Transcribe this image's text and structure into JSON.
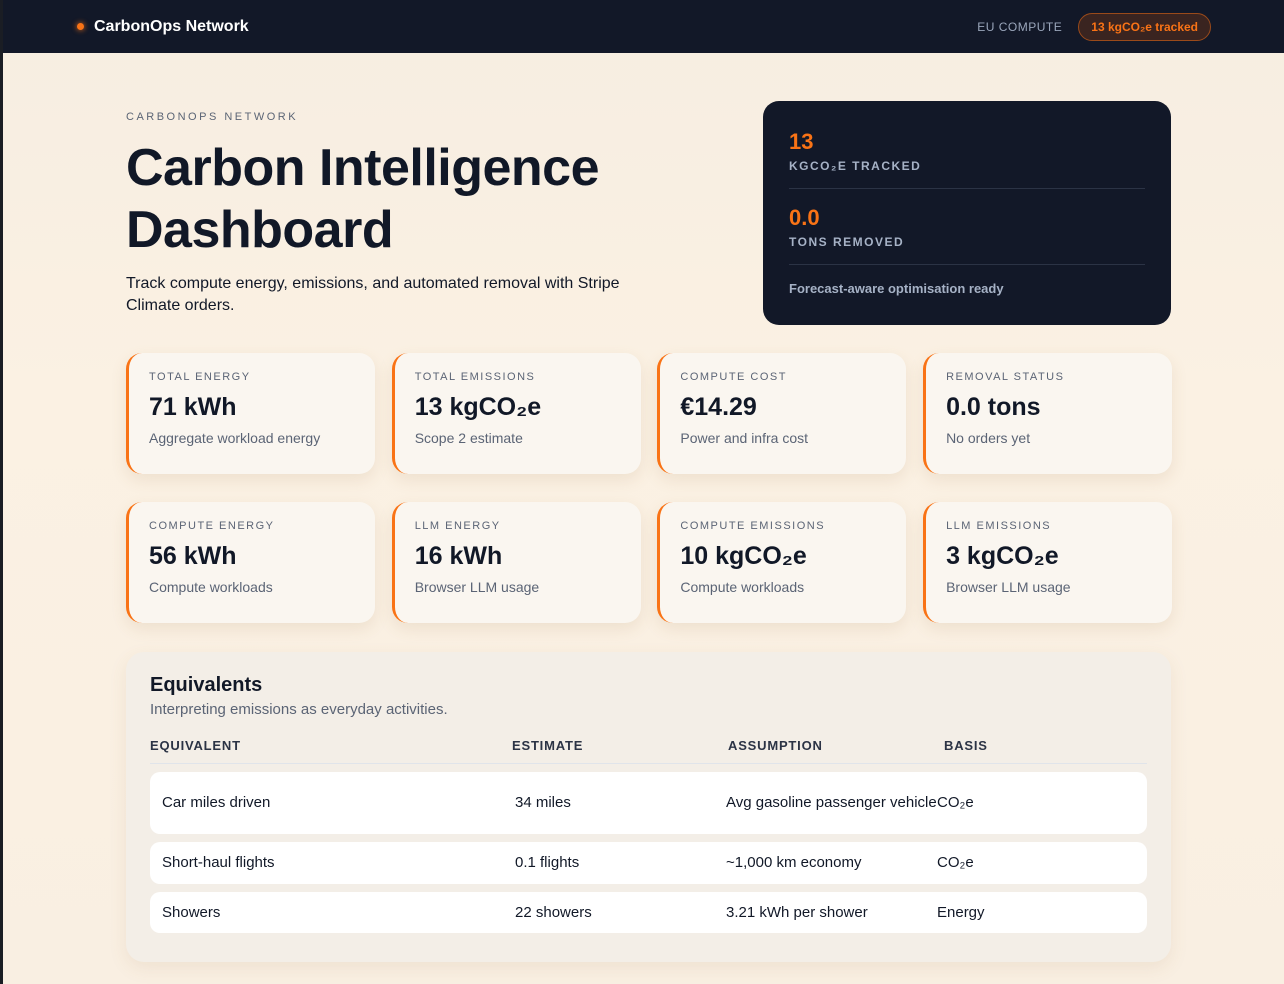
{
  "topbar": {
    "brand": "CarbonOps Network",
    "region": "EU COMPUTE",
    "tracked_pill": "13 kgCO₂e tracked"
  },
  "hero": {
    "eyebrow": "CARBONOPS NETWORK",
    "title": "Carbon Intelligence Dashboard",
    "lead": "Track compute energy, emissions, and automated removal with Stripe Climate orders.",
    "summary": {
      "tracked_value": "13",
      "tracked_label": "KGCO₂E TRACKED",
      "removed_value": "0.0",
      "removed_label": "TONS REMOVED",
      "footer": "Forecast-aware optimisation ready"
    }
  },
  "cards": [
    {
      "label": "TOTAL ENERGY",
      "value": "71 kWh",
      "sub": "Aggregate workload energy"
    },
    {
      "label": "TOTAL EMISSIONS",
      "value": "13 kgCO₂e",
      "sub": "Scope 2 estimate"
    },
    {
      "label": "COMPUTE COST",
      "value": "€14.29",
      "sub": "Power and infra cost"
    },
    {
      "label": "REMOVAL STATUS",
      "value": "0.0 tons",
      "sub": "No orders yet"
    },
    {
      "label": "COMPUTE ENERGY",
      "value": "56 kWh",
      "sub": "Compute workloads"
    },
    {
      "label": "LLM ENERGY",
      "value": "16 kWh",
      "sub": "Browser LLM usage"
    },
    {
      "label": "COMPUTE EMISSIONS",
      "value": "10 kgCO₂e",
      "sub": "Compute workloads"
    },
    {
      "label": "LLM EMISSIONS",
      "value": "3 kgCO₂e",
      "sub": "Browser LLM usage"
    }
  ],
  "equivalents": {
    "title": "Equivalents",
    "subtitle": "Interpreting emissions as everyday activities.",
    "headers": [
      "EQUIVALENT",
      "ESTIMATE",
      "ASSUMPTION",
      "BASIS"
    ],
    "rows": [
      [
        "Car miles driven",
        "34 miles",
        "Avg gasoline passenger vehicle",
        "CO₂e"
      ],
      [
        "Short-haul flights",
        "0.1 flights",
        "~1,000 km economy",
        "CO₂e"
      ],
      [
        "Showers",
        "22 showers",
        "3.21 kWh per shower",
        "Energy"
      ]
    ]
  },
  "colors": {
    "accent": "#f97316",
    "dark": "#121828"
  }
}
